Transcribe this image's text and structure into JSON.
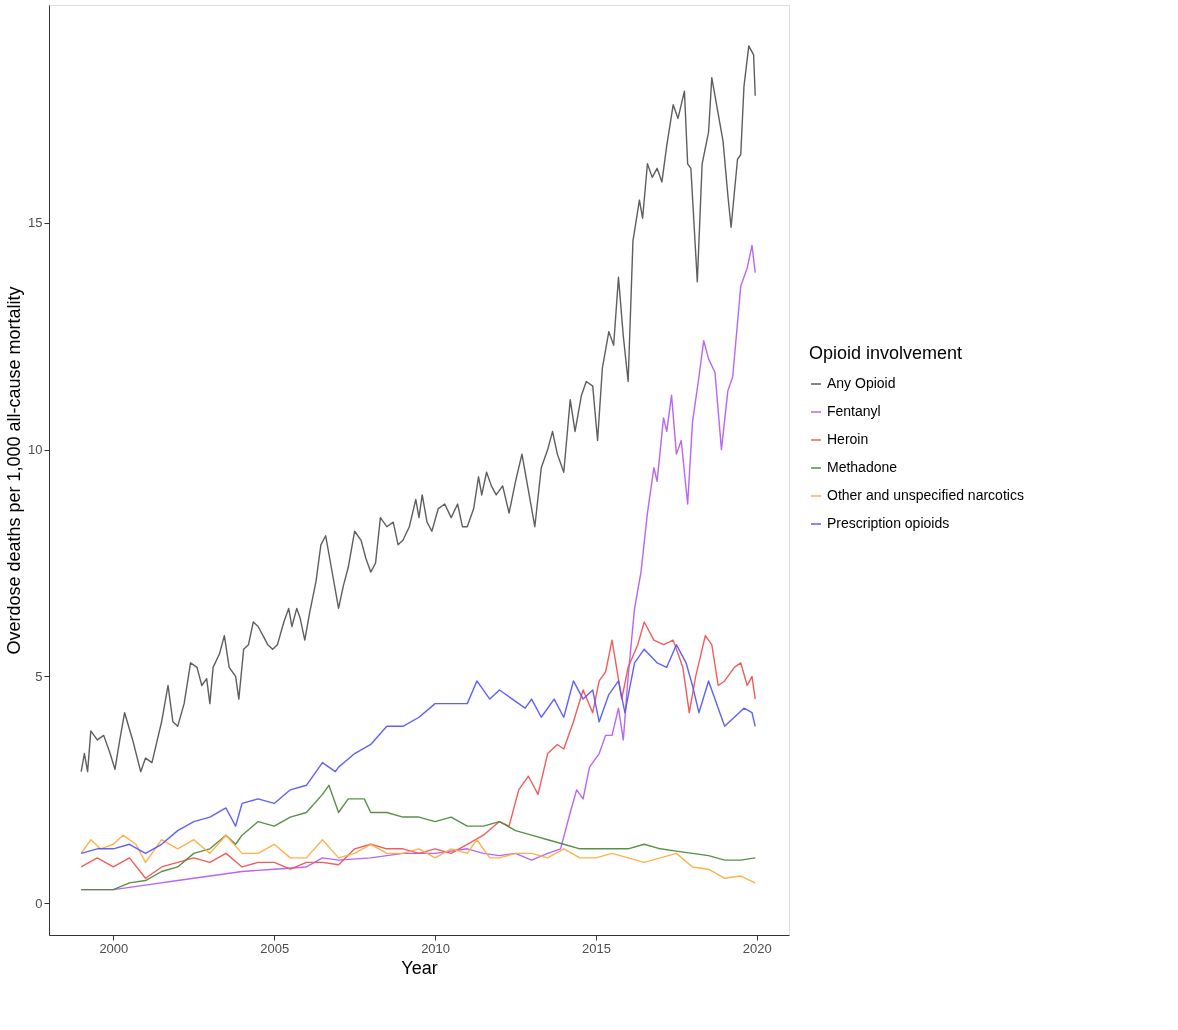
{
  "chart_data": {
    "type": "line",
    "xlabel": "Year",
    "ylabel": "Overdose deaths per 1,000 all-cause mortality",
    "legend_title": "Opioid involvement",
    "xlim": [
      1998,
      2021
    ],
    "xticks": [
      2000,
      2005,
      2010,
      2015,
      2020
    ],
    "ylim": [
      -0.7,
      19.8
    ],
    "yticks": [
      0,
      5,
      10,
      15
    ],
    "grid": false,
    "legend": "right",
    "line_style": "solid",
    "marker": "none",
    "series": [
      {
        "name": "Any Opioid",
        "color": "#555555",
        "x": [
          1999.0,
          1999.1,
          1999.2,
          1999.3,
          1999.5,
          1999.7,
          1999.9,
          2000.05,
          2000.2,
          2000.35,
          2000.6,
          2000.85,
          2001.0,
          2001.2,
          2001.5,
          2001.7,
          2001.85,
          2002.0,
          2002.2,
          2002.4,
          2002.6,
          2002.75,
          2002.9,
          2003.0,
          2003.1,
          2003.3,
          2003.45,
          2003.6,
          2003.8,
          2003.9,
          2004.05,
          2004.2,
          2004.35,
          2004.5,
          2004.8,
          2004.95,
          2005.1,
          2005.3,
          2005.45,
          2005.55,
          2005.7,
          2005.8,
          2005.95,
          2006.1,
          2006.3,
          2006.45,
          2006.6,
          2006.75,
          2006.9,
          2007.0,
          2007.15,
          2007.3,
          2007.5,
          2007.7,
          2007.85,
          2008.0,
          2008.15,
          2008.3,
          2008.5,
          2008.7,
          2008.85,
          2009.0,
          2009.2,
          2009.4,
          2009.5,
          2009.6,
          2009.75,
          2009.9,
          2010.1,
          2010.3,
          2010.5,
          2010.7,
          2010.85,
          2011.0,
          2011.2,
          2011.35,
          2011.45,
          2011.6,
          2011.75,
          2011.9,
          2012.1,
          2012.3,
          2012.5,
          2012.7,
          2012.9,
          2013.1,
          2013.3,
          2013.5,
          2013.65,
          2013.8,
          2014.0,
          2014.2,
          2014.35,
          2014.55,
          2014.7,
          2014.9,
          2015.05,
          2015.2,
          2015.4,
          2015.55,
          2015.7,
          2015.85,
          2016.0,
          2016.15,
          2016.35,
          2016.45,
          2016.6,
          2016.75,
          2016.9,
          2017.05,
          2017.2,
          2017.4,
          2017.55,
          2017.75,
          2017.85,
          2017.95,
          2018.15,
          2018.3,
          2018.5,
          2018.6,
          2018.75,
          2018.95,
          2019.1,
          2019.2,
          2019.4,
          2019.5,
          2019.6,
          2019.75,
          2019.9,
          2019.95
        ],
        "values": [
          2.9,
          3.3,
          2.9,
          3.8,
          3.6,
          3.7,
          3.3,
          2.95,
          3.6,
          4.2,
          3.6,
          2.9,
          3.2,
          3.1,
          4.0,
          4.8,
          4.0,
          3.9,
          4.4,
          5.3,
          5.2,
          4.8,
          4.95,
          4.4,
          5.2,
          5.5,
          5.9,
          5.2,
          5.0,
          4.5,
          5.6,
          5.7,
          6.2,
          6.1,
          5.7,
          5.6,
          5.7,
          6.2,
          6.5,
          6.1,
          6.5,
          6.3,
          5.8,
          6.4,
          7.1,
          7.9,
          8.1,
          7.5,
          6.9,
          6.5,
          7.0,
          7.4,
          8.2,
          8.0,
          7.6,
          7.3,
          7.5,
          8.5,
          8.3,
          8.4,
          7.9,
          8.0,
          8.3,
          8.9,
          8.5,
          9.0,
          8.4,
          8.2,
          8.7,
          8.8,
          8.5,
          8.8,
          8.3,
          8.3,
          8.7,
          9.4,
          9.0,
          9.5,
          9.2,
          9.0,
          9.2,
          8.6,
          9.3,
          9.9,
          9.1,
          8.3,
          9.6,
          10.0,
          10.4,
          9.9,
          9.5,
          11.1,
          10.4,
          11.2,
          11.5,
          11.4,
          10.2,
          11.8,
          12.6,
          12.3,
          13.8,
          12.5,
          11.5,
          14.6,
          15.5,
          15.1,
          16.3,
          16.0,
          16.2,
          15.9,
          16.7,
          17.6,
          17.3,
          17.9,
          16.3,
          16.2,
          13.7,
          16.3,
          17.0,
          18.2,
          17.6,
          16.8,
          15.6,
          14.9,
          16.4,
          16.5,
          18.0,
          18.9,
          18.7,
          17.8
        ]
      },
      {
        "name": "Fentanyl",
        "color": "#b45ef2",
        "x": [
          1999,
          2000,
          2001,
          2002,
          2003,
          2004,
          2005,
          2006,
          2006.5,
          2007,
          2008,
          2009,
          2010,
          2011,
          2011.5,
          2012,
          2012.5,
          2013,
          2013.5,
          2013.9,
          2014.2,
          2014.4,
          2014.6,
          2014.8,
          2015.1,
          2015.3,
          2015.5,
          2015.7,
          2015.85,
          2016.0,
          2016.2,
          2016.4,
          2016.6,
          2016.8,
          2016.9,
          2017.1,
          2017.2,
          2017.35,
          2017.5,
          2017.65,
          2017.85,
          2018.0,
          2018.2,
          2018.35,
          2018.5,
          2018.7,
          2018.9,
          2019.1,
          2019.25,
          2019.5,
          2019.7,
          2019.85,
          2019.95
        ],
        "values": [
          0.3,
          0.3,
          0.4,
          0.5,
          0.6,
          0.7,
          0.75,
          0.8,
          1.0,
          0.95,
          1.0,
          1.1,
          1.1,
          1.2,
          1.1,
          1.05,
          1.1,
          0.95,
          1.1,
          1.2,
          2.0,
          2.5,
          2.3,
          3.0,
          3.3,
          3.7,
          3.7,
          4.3,
          3.6,
          5.0,
          6.5,
          7.3,
          8.6,
          9.6,
          9.3,
          10.7,
          10.4,
          11.2,
          9.9,
          10.2,
          8.8,
          10.6,
          11.6,
          12.4,
          12.0,
          11.7,
          10.0,
          11.3,
          11.6,
          13.6,
          14.0,
          14.5,
          13.9
        ]
      },
      {
        "name": "Heroin",
        "color": "#f05454",
        "x": [
          1999,
          1999.5,
          2000,
          2000.5,
          2001,
          2001.5,
          2002,
          2002.5,
          2003,
          2003.5,
          2004,
          2004.5,
          2005,
          2005.5,
          2006,
          2006.5,
          2007,
          2007.5,
          2008,
          2008.5,
          2009,
          2009.5,
          2010,
          2010.5,
          2011,
          2011.5,
          2012,
          2012.3,
          2012.6,
          2012.9,
          2013.2,
          2013.5,
          2013.8,
          2014.0,
          2014.3,
          2014.6,
          2014.9,
          2015.1,
          2015.3,
          2015.5,
          2015.8,
          2016.0,
          2016.3,
          2016.5,
          2016.8,
          2017.1,
          2017.4,
          2017.7,
          2017.9,
          2018.1,
          2018.4,
          2018.6,
          2018.8,
          2019.0,
          2019.3,
          2019.5,
          2019.7,
          2019.85,
          2019.95
        ],
        "values": [
          0.8,
          1.0,
          0.8,
          1.0,
          0.55,
          0.8,
          0.9,
          1.0,
          0.9,
          1.1,
          0.8,
          0.9,
          0.9,
          0.75,
          0.9,
          0.9,
          0.85,
          1.2,
          1.3,
          1.2,
          1.2,
          1.1,
          1.2,
          1.1,
          1.3,
          1.5,
          1.8,
          1.7,
          2.5,
          2.8,
          2.4,
          3.3,
          3.5,
          3.4,
          4.0,
          4.7,
          4.2,
          4.9,
          5.1,
          5.8,
          4.5,
          5.2,
          5.7,
          6.2,
          5.8,
          5.7,
          5.8,
          5.2,
          4.2,
          5.0,
          5.9,
          5.7,
          4.8,
          4.9,
          5.2,
          5.3,
          4.8,
          5.0,
          4.5
        ]
      },
      {
        "name": "Methadone",
        "color": "#4f8a3d",
        "x": [
          1999,
          2000,
          2000.5,
          2001,
          2001.5,
          2002,
          2002.5,
          2003,
          2003.5,
          2003.8,
          2004,
          2004.5,
          2005,
          2005.5,
          2006,
          2006.5,
          2006.7,
          2007,
          2007.3,
          2007.8,
          2008,
          2008.5,
          2009,
          2009.5,
          2010,
          2010.5,
          2011,
          2011.5,
          2012,
          2012.5,
          2013,
          2013.5,
          2014,
          2014.5,
          2015,
          2015.5,
          2016,
          2016.5,
          2017,
          2017.5,
          2018,
          2018.5,
          2019,
          2019.5,
          2019.95
        ],
        "values": [
          0.3,
          0.3,
          0.45,
          0.5,
          0.7,
          0.8,
          1.1,
          1.2,
          1.5,
          1.3,
          1.5,
          1.8,
          1.7,
          1.9,
          2.0,
          2.4,
          2.6,
          2.0,
          2.3,
          2.3,
          2.0,
          2.0,
          1.9,
          1.9,
          1.8,
          1.9,
          1.7,
          1.7,
          1.8,
          1.6,
          1.5,
          1.4,
          1.3,
          1.2,
          1.2,
          1.2,
          1.2,
          1.3,
          1.2,
          1.15,
          1.1,
          1.05,
          0.95,
          0.95,
          1.0
        ]
      },
      {
        "name": "Other and unspecified narcotics",
        "color": "#ffad42",
        "x": [
          1999,
          1999.3,
          1999.6,
          2000,
          2000.3,
          2000.7,
          2001,
          2001.5,
          2002,
          2002.5,
          2003,
          2003.5,
          2004,
          2004.5,
          2005,
          2005.5,
          2006,
          2006.5,
          2007,
          2007.5,
          2008,
          2008.5,
          2009,
          2009.5,
          2010,
          2010.5,
          2011,
          2011.3,
          2011.7,
          2012,
          2012.5,
          2013,
          2013.5,
          2014,
          2014.5,
          2015,
          2015.5,
          2016,
          2016.5,
          2017,
          2017.5,
          2018,
          2018.5,
          2019,
          2019.5,
          2019.95
        ],
        "values": [
          1.1,
          1.4,
          1.2,
          1.3,
          1.5,
          1.3,
          0.9,
          1.4,
          1.2,
          1.4,
          1.1,
          1.5,
          1.1,
          1.1,
          1.3,
          1.0,
          1.0,
          1.4,
          1.0,
          1.1,
          1.3,
          1.1,
          1.1,
          1.2,
          1.0,
          1.2,
          1.1,
          1.4,
          1.0,
          1.0,
          1.1,
          1.1,
          1.0,
          1.2,
          1.0,
          1.0,
          1.1,
          1.0,
          0.9,
          1.0,
          1.1,
          0.8,
          0.75,
          0.55,
          0.6,
          0.45
        ]
      },
      {
        "name": "Prescription opioids",
        "color": "#5757fa",
        "x": [
          1999,
          1999.5,
          2000,
          2000.5,
          2001,
          2001.5,
          2002,
          2002.5,
          2003,
          2003.5,
          2003.8,
          2004,
          2004.5,
          2005,
          2005.5,
          2006,
          2006.5,
          2006.9,
          2007,
          2007.5,
          2008,
          2008.5,
          2009,
          2009.5,
          2010,
          2010.5,
          2011,
          2011.3,
          2011.7,
          2012,
          2012.4,
          2012.8,
          2013,
          2013.3,
          2013.7,
          2014,
          2014.3,
          2014.6,
          2014.9,
          2015.1,
          2015.4,
          2015.7,
          2015.9,
          2016.2,
          2016.5,
          2016.9,
          2017.2,
          2017.5,
          2017.8,
          2018.0,
          2018.2,
          2018.5,
          2018.8,
          2019.0,
          2019.3,
          2019.6,
          2019.85,
          2019.95
        ],
        "values": [
          1.1,
          1.2,
          1.2,
          1.3,
          1.1,
          1.3,
          1.6,
          1.8,
          1.9,
          2.1,
          1.7,
          2.2,
          2.3,
          2.2,
          2.5,
          2.6,
          3.1,
          2.9,
          3.0,
          3.3,
          3.5,
          3.9,
          3.9,
          4.1,
          4.4,
          4.4,
          4.4,
          4.9,
          4.5,
          4.7,
          4.5,
          4.3,
          4.5,
          4.1,
          4.5,
          4.1,
          4.9,
          4.5,
          4.7,
          4.0,
          4.6,
          4.9,
          4.2,
          5.3,
          5.6,
          5.3,
          5.2,
          5.7,
          5.3,
          4.8,
          4.2,
          4.9,
          4.3,
          3.9,
          4.1,
          4.3,
          4.2,
          3.9
        ]
      }
    ]
  }
}
